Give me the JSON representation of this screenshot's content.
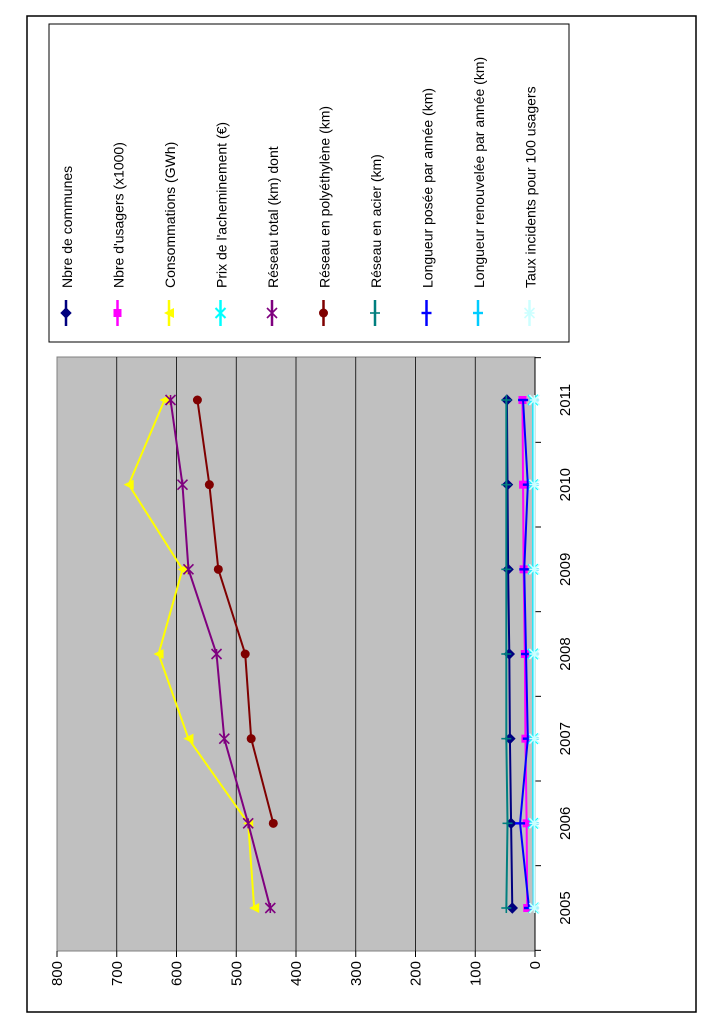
{
  "chart_data": {
    "type": "line",
    "categories": [
      "2005",
      "2006",
      "2007",
      "2008",
      "2009",
      "2010",
      "2011"
    ],
    "ylim": [
      0,
      800
    ],
    "yticks": [
      "0",
      "100",
      "200",
      "300",
      "400",
      "500",
      "600",
      "700",
      "800"
    ],
    "grid": true,
    "legend_position": "right",
    "plot_background": "#c0c0c0",
    "series": [
      {
        "name": "Nbre de communes",
        "color": "#00007f",
        "marker": "diamond",
        "values": [
          38,
          40,
          42,
          43,
          45,
          46,
          47
        ]
      },
      {
        "name": "Nbre d'usagers (x1000)",
        "color": "#ff00ff",
        "marker": "square",
        "values": [
          13,
          14,
          16,
          17,
          19,
          20,
          21
        ]
      },
      {
        "name": "Consommations (GWh)",
        "color": "#ffff00",
        "marker": "triangle",
        "values": [
          470,
          480,
          580,
          630,
          590,
          680,
          620
        ]
      },
      {
        "name": "Prix de l'acheminement (€)",
        "color": "#00ffff",
        "marker": "x",
        "values": [
          2,
          3,
          3,
          3,
          3,
          3,
          3
        ]
      },
      {
        "name": "Réseau total (km) dont",
        "color": "#7f007f",
        "marker": "star",
        "values": [
          443,
          480,
          520,
          533,
          580,
          590,
          610
        ]
      },
      {
        "name": "Réseau en polyéthylène (km)",
        "color": "#7f0000",
        "marker": "circle",
        "values": [
          null,
          438,
          475,
          485,
          530,
          545,
          565
        ]
      },
      {
        "name": "Réseau en acier (km)",
        "color": "#007f7f",
        "marker": "plus",
        "values": [
          48,
          46,
          48,
          48,
          48,
          48,
          48
        ]
      },
      {
        "name": "Longueur posée par année (km)",
        "color": "#0000ff",
        "marker": "dash",
        "values": [
          10,
          25,
          12,
          15,
          18,
          12,
          20
        ]
      },
      {
        "name": "Longueur renouvelée par année (km)",
        "color": "#00ccff",
        "marker": "dash",
        "values": [
          2,
          2,
          2,
          2,
          2,
          2,
          2
        ]
      },
      {
        "name": "Taux incidents pour 100 usagers",
        "color": "#ccffff",
        "marker": "asterisk",
        "values": [
          1,
          1,
          1,
          1,
          1,
          1,
          1
        ]
      }
    ]
  }
}
